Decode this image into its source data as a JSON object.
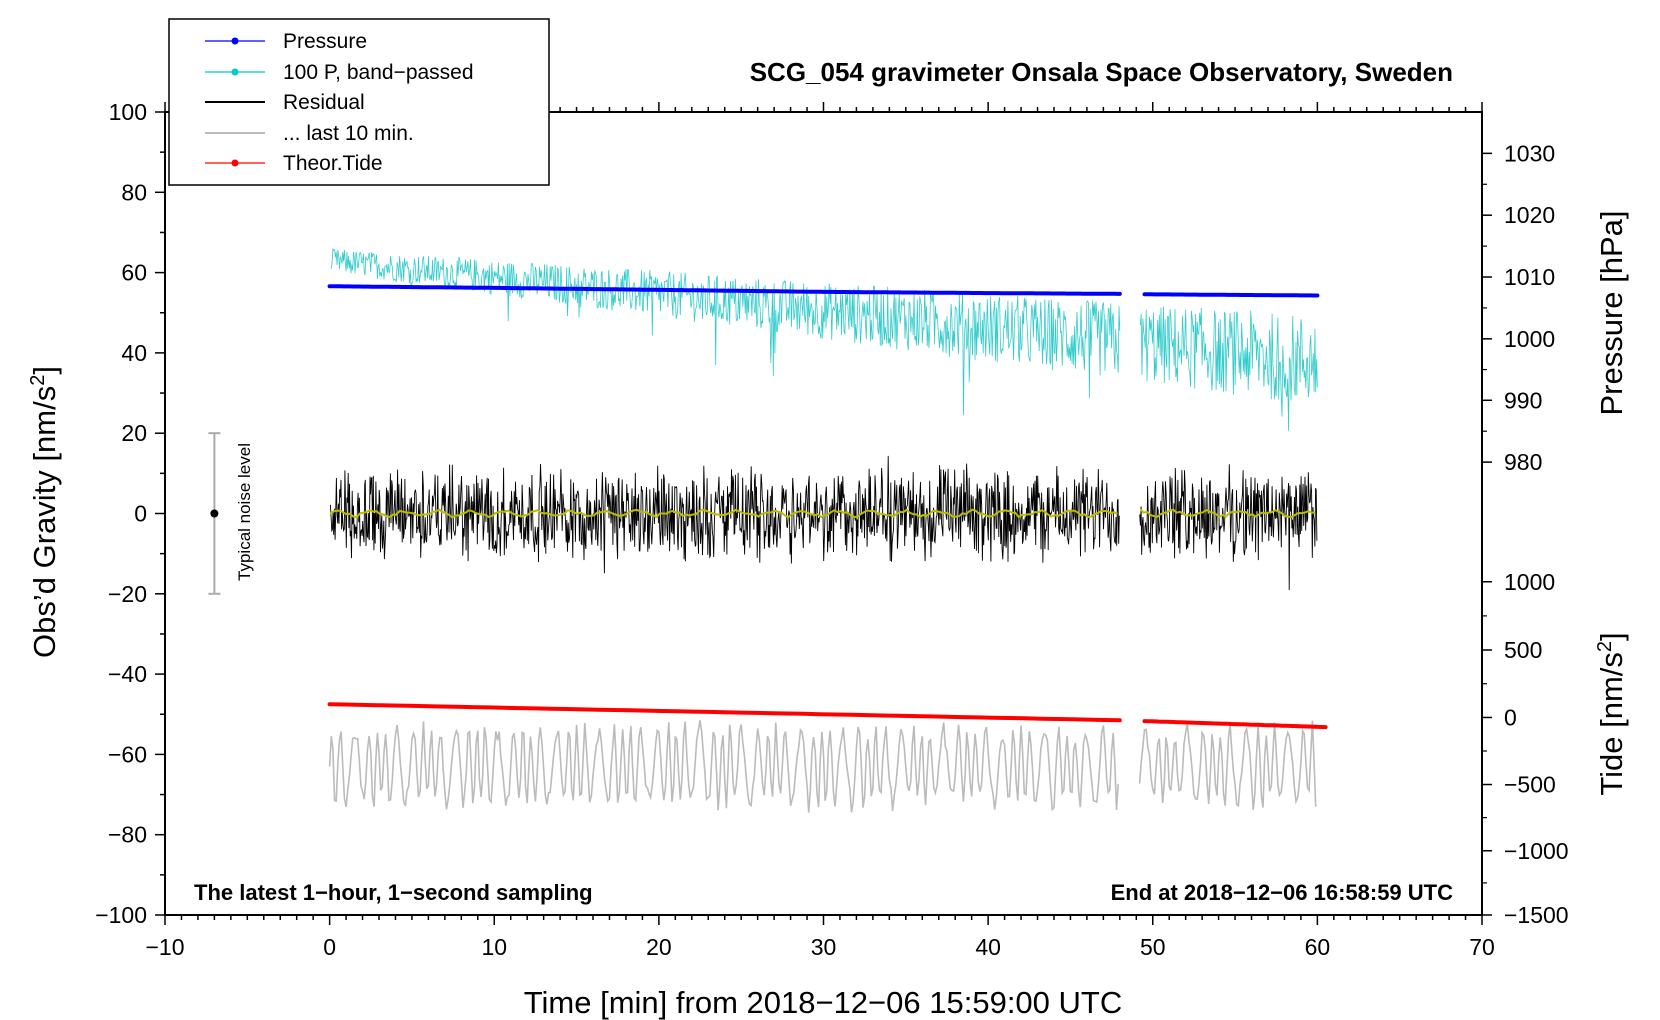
{
  "chart_data": {
    "type": "line",
    "title": "SCG_054 gravimeter Onsala Space Observatory, Sweden",
    "xlabel": "Time [min] from 2018−12−06 15:59:00 UTC",
    "ylabel_left": "Obs’d Gravity [nm/s",
    "ylabel_left_sup": "2",
    "ylabel_left_end": "]",
    "ylabel_right_pressure": "Pressure [hPa]",
    "ylabel_right_tide": "Tide [nm/s",
    "ylabel_right_tide_sup": "2",
    "ylabel_right_tide_end": "]",
    "xlim": [
      -10,
      70
    ],
    "ylim_left": [
      -100,
      100
    ],
    "x_ticks": [
      -10,
      0,
      10,
      20,
      30,
      40,
      50,
      60,
      70
    ],
    "x_tick_labels": [
      "−10",
      "0",
      "10",
      "20",
      "30",
      "40",
      "50",
      "60",
      "70"
    ],
    "y_left_ticks": [
      100,
      80,
      60,
      40,
      20,
      0,
      -20,
      -40,
      -60,
      -80,
      -100
    ],
    "y_left_tick_labels": [
      "100",
      "80",
      "60",
      "40",
      "20",
      "0",
      "−20",
      "−40",
      "−60",
      "−80",
      "−100"
    ],
    "pressure_axis": {
      "ticks": [
        1030,
        1020,
        1010,
        1000,
        990,
        980
      ],
      "tick_labels": [
        "1030",
        "1020",
        "1010",
        "1000",
        "990",
        "980"
      ],
      "gravity_equivalent": [
        89.7,
        74.3,
        58.9,
        43.5,
        28.2,
        12.8
      ]
    },
    "tide_axis": {
      "ticks": [
        1000,
        500,
        0,
        -500,
        -1000,
        -1500
      ],
      "tick_labels": [
        "1000",
        "500",
        "0",
        "−500",
        "−1000",
        "−1500"
      ],
      "gravity_equivalent": [
        -17,
        -34,
        -50.8,
        -67.5,
        -84,
        -100
      ]
    },
    "legend": [
      {
        "label": "Pressure",
        "color": "#0000ff",
        "marker": true
      },
      {
        "label": "100 P, band−passed",
        "color": "#00cccc",
        "marker": true
      },
      {
        "label": "Residual",
        "color": "#000000",
        "marker": false
      },
      {
        "label": "... last 10 min.",
        "color": "#bbbbbb",
        "marker": false
      },
      {
        "label": "Theor.Tide",
        "color": "#ff0000",
        "marker": true
      }
    ],
    "gap": [
      48.0,
      49.2
    ],
    "series": [
      {
        "name": "Pressure",
        "color": "#0000ff",
        "x": [
          0,
          10,
          20,
          30,
          40,
          48,
          49.5,
          60
        ],
        "y": [
          56.6,
          56.2,
          55.7,
          55.2,
          54.9,
          54.7,
          54.6,
          54.3
        ]
      },
      {
        "name": "100 P, band−passed",
        "color": "#33cccc",
        "x_range": [
          0,
          60
        ],
        "mean_start": 63,
        "mean_end": 38
      },
      {
        "name": "Residual",
        "color": "#000000",
        "x_range": [
          0,
          60
        ],
        "mean": 0,
        "amplitude": 12
      },
      {
        "name": "Residual smoothed",
        "color": "#bbbb00",
        "x_range": [
          0,
          60
        ],
        "mean": 0
      },
      {
        "name": "... last 10 min.",
        "color": "#bbbbbb",
        "x_range": [
          0,
          60
        ],
        "mean": -63,
        "amplitude": 11
      },
      {
        "name": "Theor.Tide",
        "color": "#ff0000",
        "x": [
          0,
          48,
          49.5,
          60.5
        ],
        "y": [
          -47.5,
          -51.5,
          -51.7,
          -53.2
        ]
      }
    ],
    "noise_level": {
      "x": -7,
      "y_center": 0,
      "y_low": -20,
      "y_high": 20,
      "label": "Typical noise level"
    },
    "annotation_left": "The latest 1−hour, 1−second sampling",
    "annotation_right": "End at 2018−12−06 16:58:59 UTC"
  }
}
